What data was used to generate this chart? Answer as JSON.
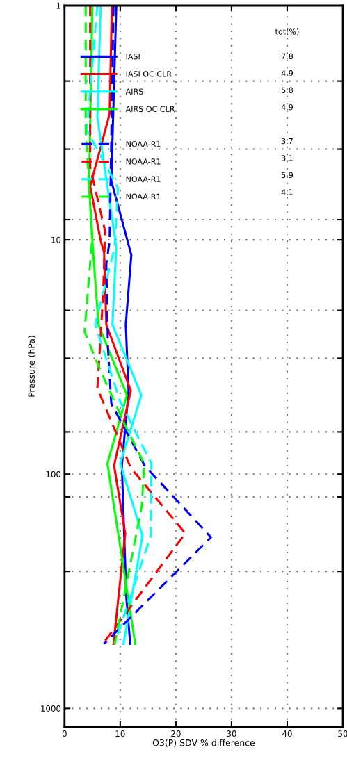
{
  "chart_data": {
    "type": "line",
    "xlabel": "O3(P) SDV % difference",
    "ylabel": "Pressure (hPa)",
    "xlim": [
      0,
      50
    ],
    "xticks": [
      0,
      10,
      20,
      30,
      40,
      50
    ],
    "ylim": [
      1200,
      1
    ],
    "log": true,
    "yticks": [
      1,
      {
        "value": 2.1,
        "label": null
      },
      {
        "value": 4.1,
        "label": null
      },
      {
        "value": 8.2,
        "label": null
      },
      10,
      {
        "value": 20,
        "label": null
      },
      {
        "value": 32,
        "label": null
      },
      {
        "value": 66,
        "label": null
      },
      100,
      {
        "value": 125,
        "label": null
      },
      {
        "value": 260,
        "label": null
      },
      1000
    ],
    "grid": true,
    "legend": "top",
    "legend_title": "tot(%)",
    "annotations": [
      "7.8",
      "4.9",
      "5.8",
      "4.9",
      "3.7",
      "3.1",
      "5.9",
      "4.1"
    ],
    "series": [
      {
        "name": "IASI",
        "color": "#0000ff",
        "line_style": "solid",
        "x": [
          9.3,
          8.4,
          12.0,
          11.0,
          11.5,
          10.3,
          11.1,
          11.8
        ],
        "values": [
          1,
          5.6,
          11.6,
          23,
          44,
          92,
          336,
          530
        ]
      },
      {
        "name": "IASI OC CLR",
        "color": "#ff0000",
        "line_style": "solid",
        "x": [
          8.5,
          8.1,
          4.6,
          6.5,
          7.1,
          7.5,
          11.9,
          8.9,
          10.9,
          8.8
        ],
        "values": [
          1,
          2.9,
          5.9,
          10.1,
          11.3,
          23,
          44,
          92,
          179,
          530
        ]
      },
      {
        "name": "AIRS",
        "color": "#00ffff",
        "line_style": "solid",
        "x": [
          6.5,
          5.9,
          9.3,
          8.6,
          13.8,
          10.0,
          14.0,
          10.6
        ],
        "values": [
          1,
          3.0,
          10.8,
          23,
          46,
          90,
          183,
          530
        ]
      },
      {
        "name": "AIRS OC CLR",
        "color": "#00ff00",
        "line_style": "solid",
        "x": [
          5.0,
          4.4,
          5.0,
          6.1,
          11.2,
          7.7,
          12.7
        ],
        "values": [
          1,
          5.9,
          10.1,
          23,
          46,
          90,
          530
        ]
      },
      {
        "name": "NOAA-R1",
        "color": "#0000ff",
        "line_style": "dashed",
        "x": [
          8.8,
          8.1,
          7.5,
          7.8,
          8.4,
          14.4,
          26.3,
          7.1
        ],
        "values": [
          1,
          10.1,
          12.7,
          29,
          50,
          92,
          186,
          530
        ]
      },
      {
        "name": "NOAA-R1",
        "color": "#ff0000",
        "line_style": "dashed",
        "x": [
          4.6,
          4.6,
          7.3,
          6.9,
          5.9,
          11.9,
          21.7,
          6.9
        ],
        "values": [
          1,
          4.9,
          9.2,
          17.8,
          43,
          94,
          179,
          530
        ]
      },
      {
        "name": "NOAA-R1",
        "color": "#00ffff",
        "line_style": "dashed",
        "x": [
          5.9,
          4.0,
          9.6,
          9.0,
          5.5,
          10.0,
          15.6,
          15.5,
          9.0
        ],
        "values": [
          1,
          3.4,
          6.0,
          10.8,
          23,
          49,
          90,
          183,
          530
        ]
      },
      {
        "name": "NOAA-R1",
        "color": "#00ff00",
        "line_style": "dashed",
        "x": [
          3.8,
          3.8,
          5.0,
          3.6,
          5.9,
          10.9,
          14.3,
          13.9,
          9.0
        ],
        "values": [
          1,
          3.4,
          9.7,
          24.6,
          33.7,
          62,
          90,
          136,
          530
        ]
      }
    ]
  }
}
